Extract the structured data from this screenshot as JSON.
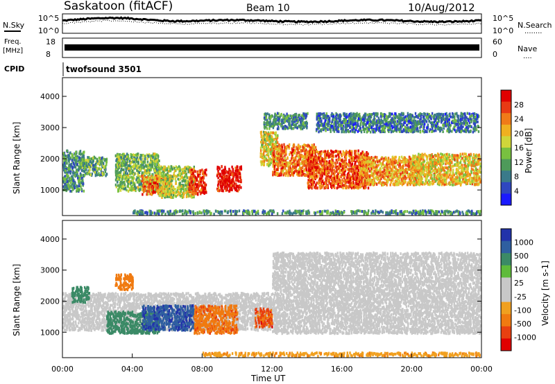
{
  "header": {
    "station": "Saskatoon (fitACF)",
    "beam": "Beam 10",
    "date": "10/Aug/2012"
  },
  "top_panels": {
    "noise_sky_label": "N.Sky",
    "noise_search_label": "N.Search",
    "noise_search_key": "........",
    "noise_ticks_left": [
      "10^5",
      "10^0"
    ],
    "noise_ticks_right": [
      "10^5",
      "10^0"
    ],
    "freq_label_1": "Freq.",
    "freq_label_2": "[MHz]",
    "freq_ticks": [
      "18",
      "8"
    ],
    "nave_label": "Nave",
    "nave_key": "....",
    "nave_ticks": [
      "60",
      "0"
    ],
    "cpid_label": "CPID",
    "cpid_value": "twofsound 3501"
  },
  "colors": {
    "power_scale": [
      "#1a1aff",
      "#2f47c0",
      "#3a7a8a",
      "#4e9a5a",
      "#78c040",
      "#cfd63a",
      "#f0b020",
      "#f07a18",
      "#e83a14",
      "#e00000"
    ],
    "velocity_scale": [
      "#2233aa",
      "#2f5fa0",
      "#3b8a66",
      "#5fbb3b",
      "#c8c8c8",
      "#c8c8c8",
      "#f0a020",
      "#f07a10",
      "#e84010",
      "#e00000"
    ],
    "ground_scatter": "#c8c8c8"
  },
  "chart_data": [
    {
      "type": "heatmap",
      "name": "power",
      "ylabel": "Slant Range [km]",
      "colorbar_label": "Power [dB]",
      "colorbar_ticks": [
        "28",
        "24",
        "20",
        "16",
        "12",
        "8",
        "4"
      ],
      "ylim": [
        180,
        4600
      ],
      "yticks": [
        "1000",
        "2000",
        "3000",
        "4000"
      ],
      "xlim": [
        0,
        24
      ],
      "scatter_regions": [
        {
          "t0": 0.0,
          "t1": 1.2,
          "r0": 1000,
          "r1": 2300,
          "db": 10
        },
        {
          "t0": 1.0,
          "t1": 2.5,
          "r0": 1500,
          "r1": 2100,
          "db": 12
        },
        {
          "t0": 3.0,
          "t1": 5.5,
          "r0": 1000,
          "r1": 2200,
          "db": 14
        },
        {
          "t0": 4.5,
          "t1": 6.2,
          "r0": 900,
          "r1": 1500,
          "db": 24
        },
        {
          "t0": 5.5,
          "t1": 7.5,
          "r0": 800,
          "r1": 1800,
          "db": 16
        },
        {
          "t0": 7.2,
          "t1": 8.2,
          "r0": 900,
          "r1": 1700,
          "db": 28
        },
        {
          "t0": 8.8,
          "t1": 10.2,
          "r0": 1000,
          "r1": 1800,
          "db": 30
        },
        {
          "t0": 11.3,
          "t1": 12.3,
          "r0": 1800,
          "r1": 2900,
          "db": 18
        },
        {
          "t0": 12.0,
          "t1": 14.5,
          "r0": 1500,
          "r1": 2500,
          "db": 24
        },
        {
          "t0": 14.0,
          "t1": 17.5,
          "r0": 1100,
          "r1": 2300,
          "db": 26
        },
        {
          "t0": 17.0,
          "t1": 20.5,
          "r0": 1200,
          "r1": 2100,
          "db": 22
        },
        {
          "t0": 20.0,
          "t1": 24.0,
          "r0": 1200,
          "r1": 2200,
          "db": 20
        },
        {
          "t0": 14.5,
          "t1": 23.8,
          "r0": 2900,
          "r1": 3500,
          "db": 8
        },
        {
          "t0": 11.5,
          "t1": 14.0,
          "r0": 3000,
          "r1": 3500,
          "db": 10
        },
        {
          "t0": 4.0,
          "t1": 24.0,
          "r0": 200,
          "r1": 380,
          "db": 10
        }
      ]
    },
    {
      "type": "heatmap",
      "name": "velocity",
      "ylabel": "Slant Range [km]",
      "colorbar_label": "Velocity [m s-1]",
      "colorbar_ticks": [
        "1000",
        "500",
        "100",
        "25",
        "-25",
        "-100",
        "-500",
        "-1000"
      ],
      "ylim": [
        180,
        4600
      ],
      "yticks": [
        "1000",
        "2000",
        "3000",
        "4000"
      ],
      "xlim": [
        0,
        24
      ],
      "xticks": [
        "00:00",
        "04:00",
        "08:00",
        "12:00",
        "16:00",
        "20:00",
        "00:00"
      ],
      "xlabel": "Time UT",
      "scatter_regions": [
        {
          "t0": 0.0,
          "t1": 12.0,
          "r0": 1100,
          "r1": 2300,
          "v": 0,
          "gs": true
        },
        {
          "t0": 12.0,
          "t1": 24.0,
          "r0": 1000,
          "r1": 3600,
          "v": 0,
          "gs": true
        },
        {
          "t0": 2.5,
          "t1": 5.5,
          "r0": 1000,
          "r1": 1700,
          "v": 120
        },
        {
          "t0": 4.5,
          "t1": 7.5,
          "r0": 1100,
          "r1": 1900,
          "v": 600
        },
        {
          "t0": 7.5,
          "t1": 10.0,
          "r0": 1000,
          "r1": 1900,
          "v": -400
        },
        {
          "t0": 11.0,
          "t1": 12.0,
          "r0": 1200,
          "r1": 1800,
          "v": -600
        },
        {
          "t0": 3.0,
          "t1": 4.0,
          "r0": 2400,
          "r1": 2900,
          "v": -300
        },
        {
          "t0": 0.5,
          "t1": 1.5,
          "r0": 2000,
          "r1": 2500,
          "v": 100
        },
        {
          "t0": 8.0,
          "t1": 24.0,
          "r0": 200,
          "r1": 380,
          "v": -80
        }
      ]
    }
  ]
}
